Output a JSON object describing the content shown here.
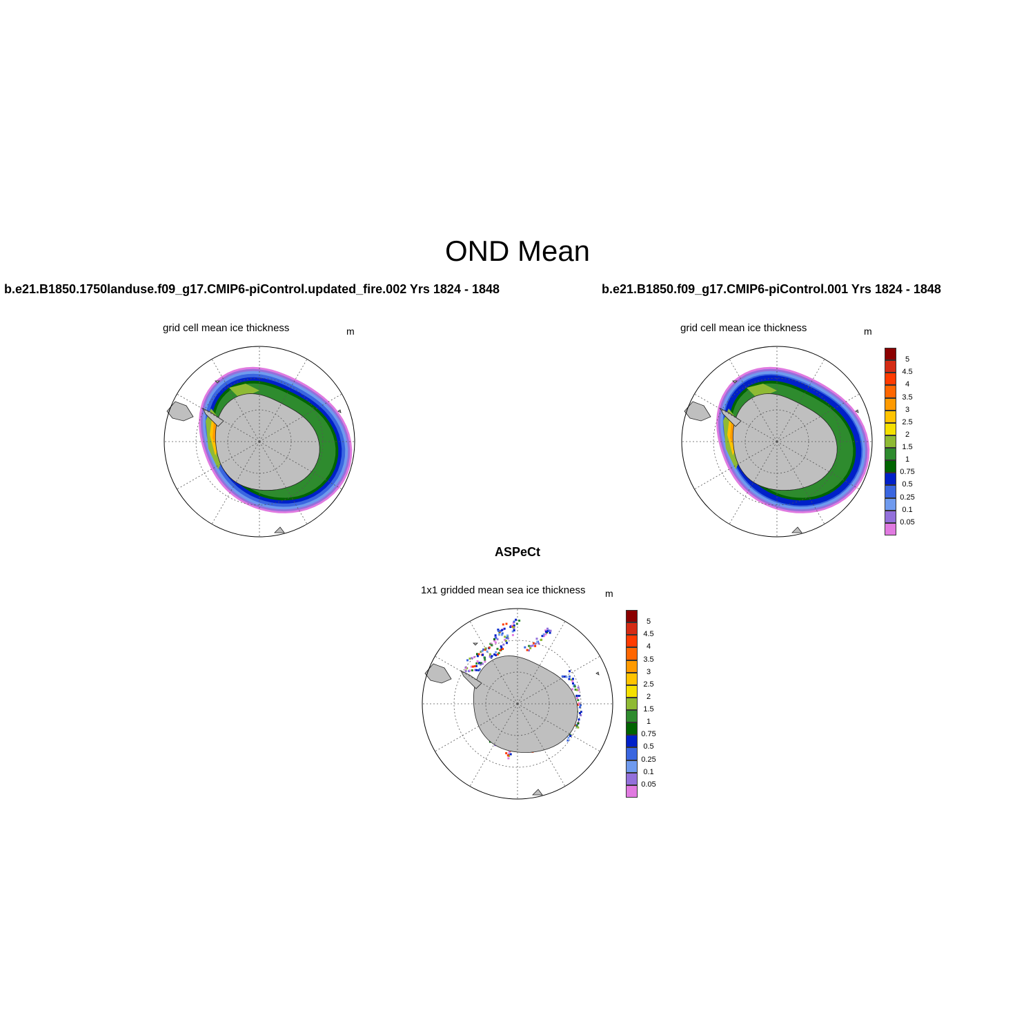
{
  "main_title": "OND Mean",
  "panels": [
    {
      "title": "b.e21.B1850.1750landuse.f09_g17.CMIP6-piControl.updated_fire.002  Yrs 1824 - 1848",
      "subtitle": "grid cell mean ice thickness",
      "unit": "m",
      "has_colorbar": false
    },
    {
      "title": "b.e21.B1850.f09_g17.CMIP6-piControl.001  Yrs 1824 - 1848",
      "subtitle": "grid cell mean ice thickness",
      "unit": "m",
      "has_colorbar": true
    },
    {
      "title": "ASPeCt",
      "subtitle": "1x1 gridded mean sea ice thickness",
      "unit": "m",
      "has_colorbar": true
    }
  ],
  "colorbar": {
    "levels": [
      "5",
      "4.5",
      "4",
      "3.5",
      "3",
      "2.5",
      "2",
      "1.5",
      "1",
      "0.75",
      "0.5",
      "0.25",
      "0.1",
      "0.05"
    ],
    "colors": [
      "#8b0000",
      "#d42b14",
      "#ff3b00",
      "#ff6600",
      "#ff9a00",
      "#ffc300",
      "#f5e000",
      "#8fba34",
      "#2e8b2e",
      "#006400",
      "#0020c8",
      "#3a66e0",
      "#6f9aee",
      "#9370db",
      "#e07ae0"
    ]
  },
  "palette": {
    "land": "#bfbfbf",
    "grid": "#555555"
  }
}
